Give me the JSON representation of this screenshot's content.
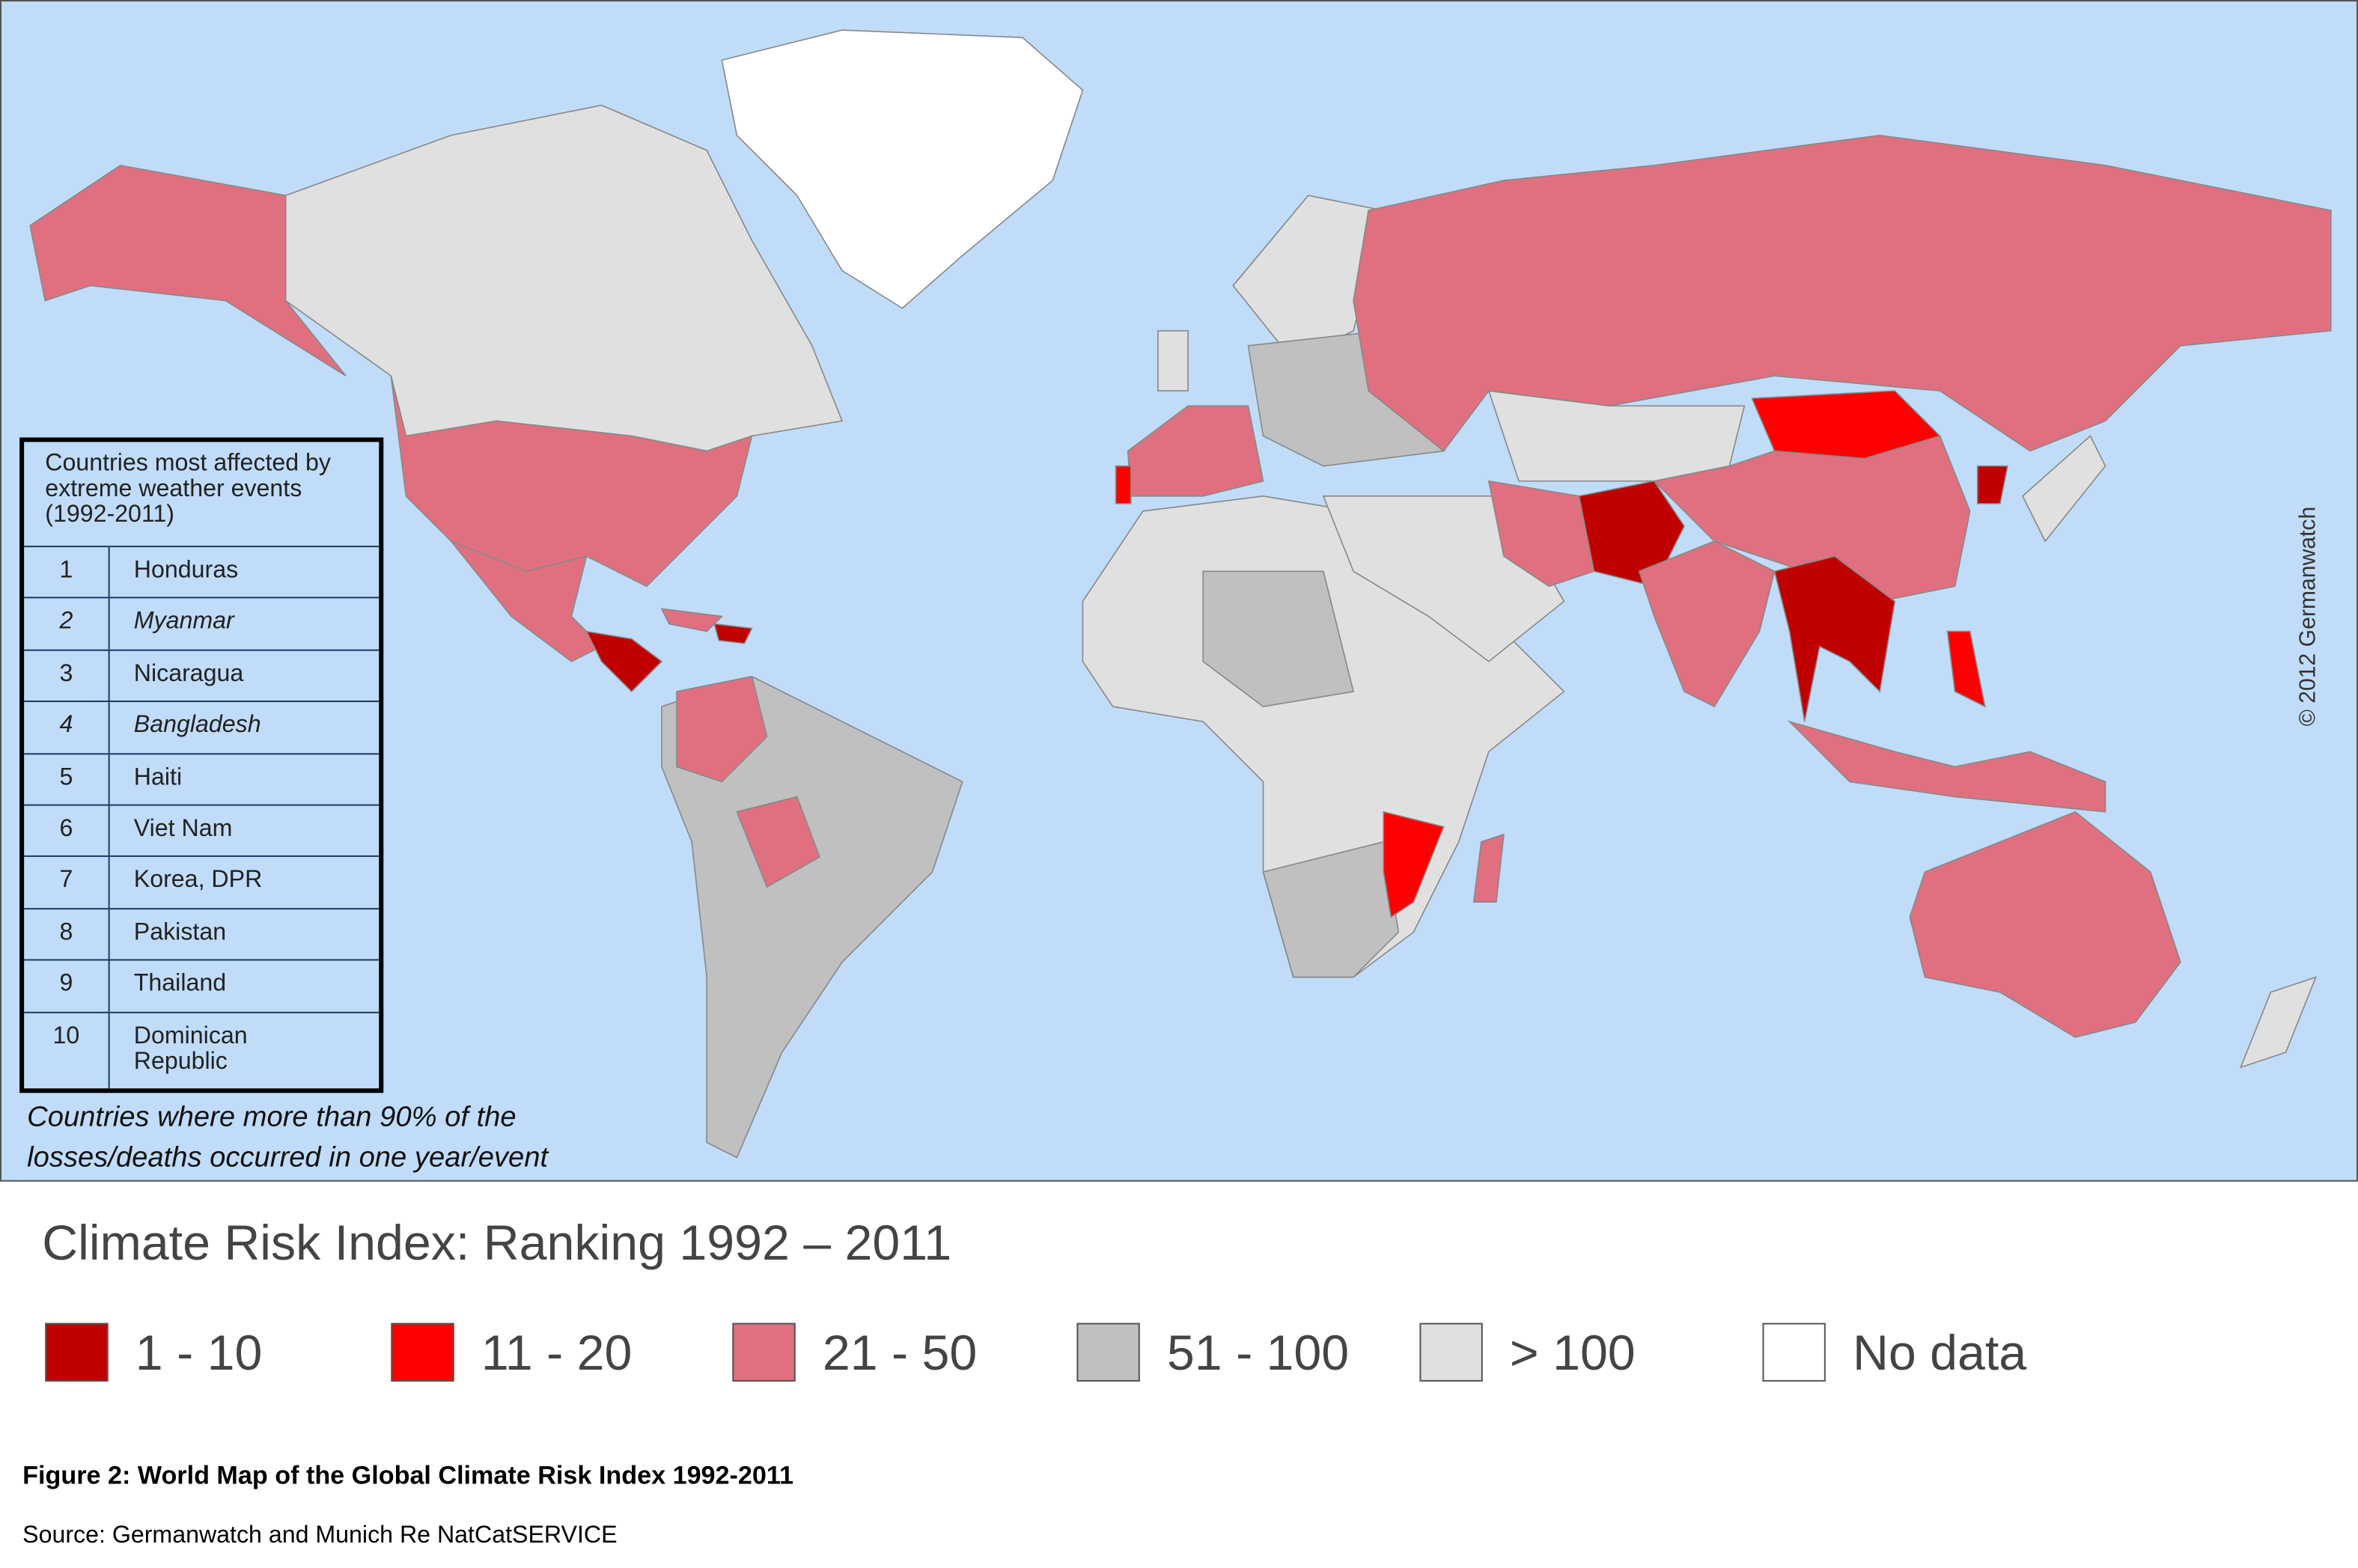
{
  "map": {
    "title": "Climate Risk Index: Ranking 1992 – 2011",
    "copyright": "© 2012 Germanwatch",
    "legend": [
      {
        "label": "1 - 10",
        "color": "#c00000"
      },
      {
        "label": "11 - 20",
        "color": "#ff0000"
      },
      {
        "label": "21 - 50",
        "color": "#e07080"
      },
      {
        "label": "51 - 100",
        "color": "#c0c0c0"
      },
      {
        "label": "> 100",
        "color": "#e0e0e0"
      },
      {
        "label": "No data",
        "color": "#ffffff"
      }
    ],
    "table": {
      "header": "Countries most affected by extreme weather events (1992-2011)",
      "rows": [
        {
          "rank": "1",
          "country": "Honduras"
        },
        {
          "rank": "2",
          "country": "Myanmar",
          "italic": true
        },
        {
          "rank": "3",
          "country": "Nicaragua"
        },
        {
          "rank": "4",
          "country": "Bangladesh",
          "italic": true
        },
        {
          "rank": "5",
          "country": "Haiti"
        },
        {
          "rank": "6",
          "country": "Viet Nam"
        },
        {
          "rank": "7",
          "country": "Korea, DPR"
        },
        {
          "rank": "8",
          "country": "Pakistan"
        },
        {
          "rank": "9",
          "country": "Thailand"
        },
        {
          "rank": "10",
          "country": "Dominican Republic"
        }
      ]
    },
    "note": "Countries where more than 90% of the losses/deaths occurred in one year/event"
  },
  "caption": "Figure 2: World Map of the Global Climate Risk Index 1992-2011",
  "source": "Source: Germanwatch and Munich Re NatCatSERVICE"
}
